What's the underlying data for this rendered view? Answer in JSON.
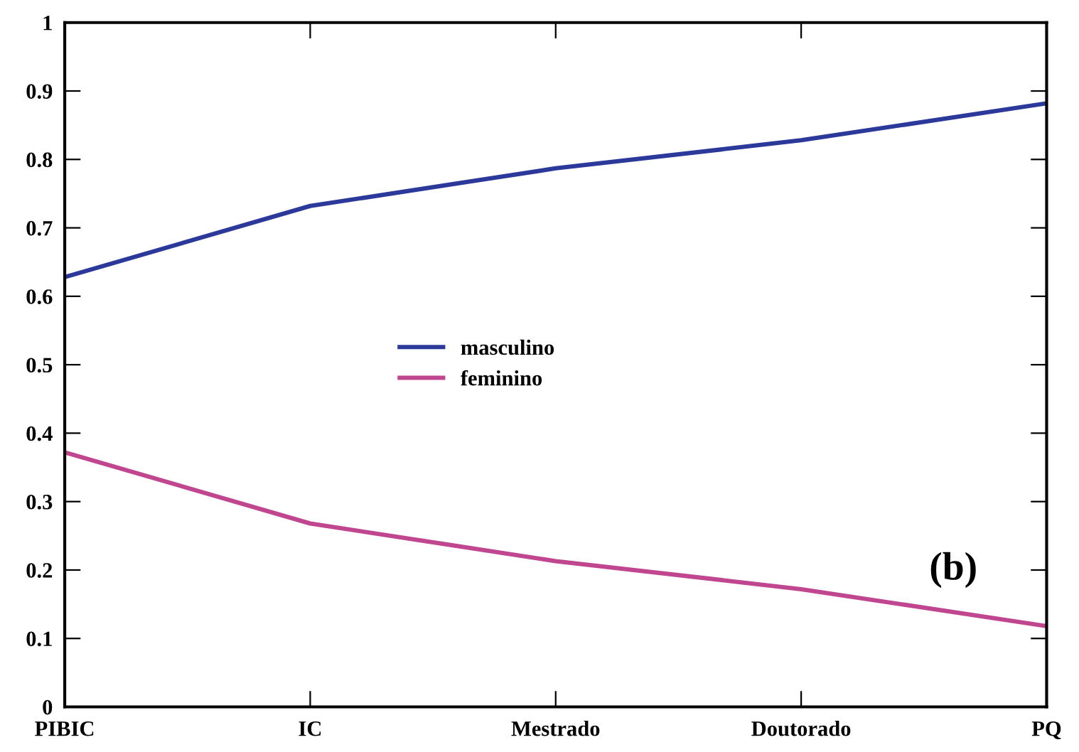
{
  "chart_data": {
    "type": "line",
    "categories": [
      "PIBIC",
      "IC",
      "Mestrado",
      "Doutorado",
      "PQ"
    ],
    "series": [
      {
        "name": "masculino",
        "color": "#2b3a9a",
        "values": [
          0.628,
          0.732,
          0.787,
          0.828,
          0.882
        ]
      },
      {
        "name": "feminino",
        "color": "#c0468f",
        "values": [
          0.372,
          0.268,
          0.213,
          0.172,
          0.118
        ]
      }
    ],
    "ylim": [
      0,
      1
    ],
    "yticks": [
      0,
      0.1,
      0.2,
      0.3,
      0.4,
      0.5,
      0.6,
      0.7,
      0.8,
      0.9,
      1
    ],
    "grid": false,
    "legend": "center",
    "marker": "none",
    "line_style": "solid",
    "annotations": [
      "(b)"
    ]
  }
}
